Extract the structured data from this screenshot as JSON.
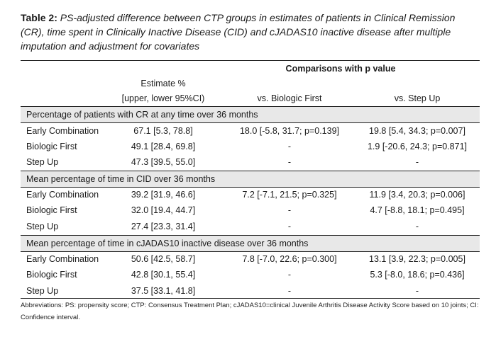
{
  "caption": {
    "label": "Table 2:",
    "text": " PS-adjusted difference between CTP groups in estimates of patients in Clinical Remission (CR), time spent in Clinically Inactive Disease (CID) and cJADAS10 inactive disease after multiple imputation and adjustment for covariates"
  },
  "header": {
    "comparisons": "Comparisons with p value",
    "estimate_line1": "Estimate %",
    "estimate_line2": "[upper, lower 95%CI)",
    "vs_biologic": "vs. Biologic First",
    "vs_stepup": "vs. Step Up"
  },
  "sections": [
    {
      "title": "Percentage of patients with CR at any time over 36 months",
      "rows": [
        {
          "group": "Early Combination",
          "estimate": "67.1 [5.3, 78.8]",
          "vs_biologic": "18.0 [-5.8, 31.7; p=0.139]",
          "vs_stepup": "19.8 [5.4, 34.3; p=0.007]"
        },
        {
          "group": "Biologic First",
          "estimate": "49.1 [28.4, 69.8]",
          "vs_biologic": "-",
          "vs_stepup": "1.9 [-20.6, 24.3; p=0.871]"
        },
        {
          "group": "Step Up",
          "estimate": "47.3 [39.5, 55.0]",
          "vs_biologic": "-",
          "vs_stepup": "-"
        }
      ]
    },
    {
      "title": "Mean percentage of time in CID over 36 months",
      "rows": [
        {
          "group": "Early Combination",
          "estimate": "39.2 [31.9, 46.6]",
          "vs_biologic": "7.2 [-7.1, 21.5; p=0.325]",
          "vs_stepup": "11.9 [3.4, 20.3; p=0.006]"
        },
        {
          "group": "Biologic First",
          "estimate": "32.0 [19.4, 44.7]",
          "vs_biologic": "-",
          "vs_stepup": "4.7 [-8.8, 18.1; p=0.495]"
        },
        {
          "group": "Step Up",
          "estimate": "27.4 [23.3, 31.4]",
          "vs_biologic": "-",
          "vs_stepup": "-"
        }
      ]
    },
    {
      "title": "Mean percentage of time in cJADAS10 inactive disease over 36 months",
      "rows": [
        {
          "group": "Early Combination",
          "estimate": "50.6 [42.5, 58.7]",
          "vs_biologic": "7.8 [-7.0, 22.6; p=0.300]",
          "vs_stepup": "13.1 [3.9, 22.3; p=0.005]"
        },
        {
          "group": "Biologic First",
          "estimate": "42.8 [30.1, 55.4]",
          "vs_biologic": "-",
          "vs_stepup": "5.3 [-8.0, 18.6; p=0.436]"
        },
        {
          "group": "Step Up",
          "estimate": "37.5 [33.1, 41.8]",
          "vs_biologic": "-",
          "vs_stepup": "-"
        }
      ]
    }
  ],
  "footnote": "Abbreviations: PS: propensity score; CTP: Consensus Treatment Plan; cJADAS10=clinical Juvenile Arthritis Disease Activity Score based on 10 joints; CI: Confidence interval."
}
